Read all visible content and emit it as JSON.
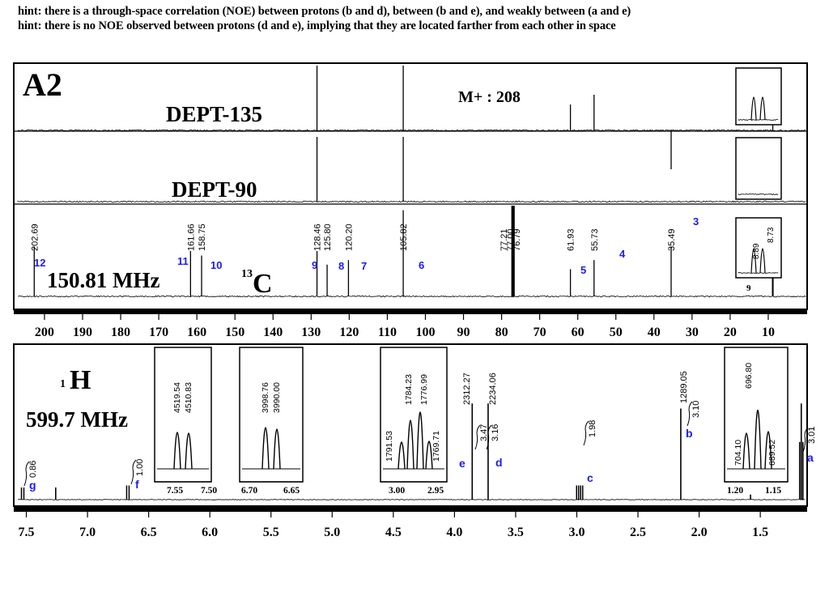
{
  "hints": [
    "hint: there is a through-space correlation (NOE) between protons (b and d), between (b and e), and weakly between (a and e)",
    "hint: there is no NOE observed between protons (d and e), implying that they are located farther from each other in space"
  ],
  "colors": {
    "ink": "#000000",
    "label_blue": "#1a1aff"
  },
  "chart_data": [
    {
      "type": "line",
      "name": "13C NMR stack (DEPT-135, DEPT-90, 13C)",
      "title": "A2",
      "mass_label": "M+ : 208",
      "xlabel": "",
      "xlim": [
        0,
        207
      ],
      "xticks": [
        200,
        190,
        180,
        170,
        160,
        150,
        140,
        130,
        120,
        110,
        100,
        90,
        80,
        70,
        60,
        50,
        40,
        30,
        20,
        10
      ],
      "series": [
        {
          "name": "DEPT-135",
          "peaks": [
            {
              "ppm": 128.46,
              "intensity": 1.0
            },
            {
              "ppm": 105.82,
              "intensity": 1.0
            },
            {
              "ppm": 61.93,
              "intensity": 0.4
            },
            {
              "ppm": 55.73,
              "intensity": 0.55
            },
            {
              "ppm": 35.49,
              "intensity": -0.6
            },
            {
              "ppm": 8.8,
              "intensity": 0.8
            }
          ]
        },
        {
          "name": "DEPT-90",
          "peaks": [
            {
              "ppm": 128.46,
              "intensity": 1.0
            },
            {
              "ppm": 105.82,
              "intensity": 1.0
            }
          ]
        },
        {
          "name": "13C",
          "frequency": "150.81 MHz",
          "nucleus": "C",
          "mass_number": "13",
          "peaks": [
            {
              "ppm": 202.69,
              "label": "202.69",
              "id": "12",
              "intensity": 0.55
            },
            {
              "ppm": 161.66,
              "label": "161.66",
              "id": "11",
              "intensity": 0.5
            },
            {
              "ppm": 158.75,
              "label": "158.75",
              "id": "10",
              "intensity": 0.45
            },
            {
              "ppm": 128.46,
              "label": "128.46",
              "id": "9",
              "intensity": 0.5
            },
            {
              "ppm": 125.8,
              "label": "125.80",
              "id": "8",
              "intensity": 0.35
            },
            {
              "ppm": 120.2,
              "label": "120.20",
              "id": "7",
              "intensity": 0.4
            },
            {
              "ppm": 105.82,
              "label": "105.82",
              "id": "6",
              "intensity": 0.95
            },
            {
              "ppm": 77.21,
              "label": "77.21",
              "id": "",
              "intensity": 1.0
            },
            {
              "ppm": 77.0,
              "label": "77.00",
              "id": "",
              "intensity": 1.0
            },
            {
              "ppm": 76.79,
              "label": "76.79",
              "id": "",
              "intensity": 1.0
            },
            {
              "ppm": 61.93,
              "label": "61.93",
              "id": "5",
              "intensity": 0.3
            },
            {
              "ppm": 55.73,
              "label": "55.73",
              "id": "4",
              "intensity": 0.4
            },
            {
              "ppm": 35.49,
              "label": "35.49",
              "id": "3",
              "intensity": 0.55
            },
            {
              "ppm": 8.89,
              "label": "8.89",
              "id": "2",
              "intensity": 0.75
            },
            {
              "ppm": 8.73,
              "label": "8.73",
              "id": "1",
              "intensity": 0.75
            }
          ],
          "inset_label": "9"
        }
      ]
    },
    {
      "type": "line",
      "name": "1H NMR",
      "nucleus": "H",
      "mass_number": "1",
      "frequency": "599.7 MHz",
      "xlim": [
        1.08,
        7.6
      ],
      "xticks": [
        "7.5",
        "7.0",
        "6.5",
        "6.0",
        "5.5",
        "5.0",
        "4.5",
        "4.0",
        "3.5",
        "3.0",
        "2.5",
        "2.0",
        "1.5"
      ],
      "peaks": [
        {
          "ppm": 7.53,
          "id": "g",
          "integral": "0.86",
          "intensity": 0.12
        },
        {
          "ppm": 7.26,
          "id": "",
          "integral": "",
          "intensity": 0.12
        },
        {
          "ppm": 6.67,
          "id": "f",
          "integral": "1.00",
          "intensity": 0.14
        },
        {
          "ppm": 3.855,
          "id": "e",
          "integral": "3.47",
          "intensity": 0.95
        },
        {
          "ppm": 3.725,
          "id": "d",
          "integral": "3.16",
          "intensity": 0.95
        },
        {
          "ppm": 2.975,
          "id": "c",
          "integral": "1.98",
          "intensity": 0.14
        },
        {
          "ppm": 2.15,
          "id": "b",
          "integral": "3.10",
          "intensity": 0.9
        },
        {
          "ppm": 1.58,
          "id": "",
          "integral": "",
          "intensity": 0.05
        },
        {
          "ppm": 1.165,
          "id": "a",
          "integral": "3.01",
          "intensity": 0.95
        }
      ],
      "peak_labels": [
        {
          "text": "2312.27"
        },
        {
          "text": "2234.06"
        },
        {
          "text": "1289.05"
        }
      ],
      "insets": [
        {
          "name": "g-inset",
          "xticks": [
            "7.55",
            "7.50"
          ],
          "labels": [
            "4519.54",
            "4510.83"
          ]
        },
        {
          "name": "f-inset",
          "xticks": [
            "6.70",
            "6.65"
          ],
          "labels": [
            "3998.76",
            "3990.00"
          ]
        },
        {
          "name": "c-inset",
          "xticks": [
            "3.00",
            "2.95"
          ],
          "labels": [
            "1791.53",
            "1784.23",
            "1776.99",
            "1769.71"
          ]
        },
        {
          "name": "a-inset",
          "xticks": [
            "1.20",
            "1.15"
          ],
          "labels": [
            "704.10",
            "696.80",
            "689.52"
          ]
        }
      ]
    }
  ]
}
